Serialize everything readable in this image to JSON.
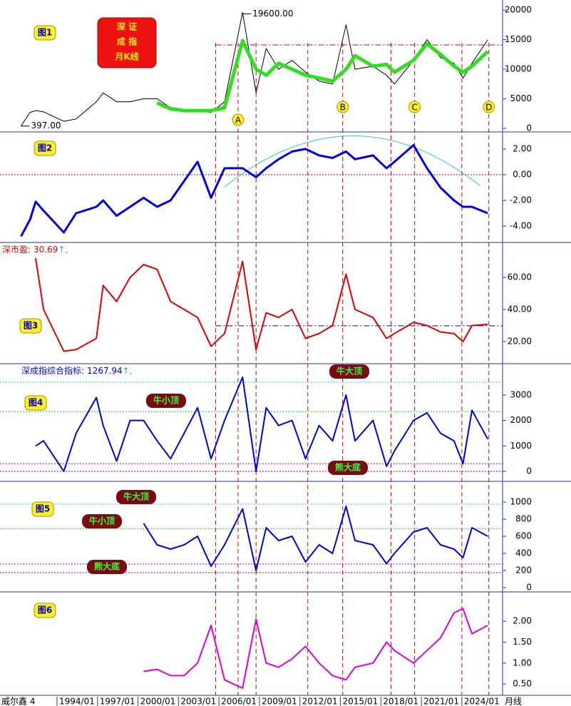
{
  "chart_data": [
    {
      "type": "line",
      "panel_label": "图1",
      "title_lines": [
        "深 证",
        "成 指",
        "月K线"
      ],
      "ylim": [
        -600,
        21700
      ],
      "yticks": [
        0,
        5000,
        10000,
        15000,
        20000
      ],
      "x": [
        "1991/05",
        "1992/01",
        "1992/06",
        "1993/01",
        "1994/07",
        "1995/06",
        "1996/12",
        "1997/06",
        "1998/06",
        "1999/06",
        "2000/06",
        "2001/06",
        "2002/06",
        "2003/06",
        "2004/06",
        "2005/06",
        "2006/06",
        "2007/10",
        "2008/10",
        "2009/07",
        "2010/06",
        "2011/06",
        "2012/06",
        "2013/06",
        "2014/06",
        "2015/06",
        "2016/02",
        "2017/06",
        "2018/06",
        "2019/01",
        "2020/06",
        "2021/06",
        "2022/06",
        "2023/06",
        "2024/02",
        "2024/10",
        "2025/12"
      ],
      "series": [
        {
          "color": "#000000",
          "width": 1,
          "values": [
            397,
            2700,
            3000,
            2800,
            1200,
            1600,
            4500,
            6000,
            4500,
            4500,
            5000,
            5000,
            3500,
            3000,
            3000,
            2700,
            4500,
            19600,
            6000,
            13500,
            10000,
            11500,
            9500,
            8000,
            7500,
            17500,
            10000,
            10500,
            9000,
            7500,
            11500,
            15000,
            12000,
            11000,
            8500,
            11000,
            15000
          ]
        },
        {
          "color": "#33dd22",
          "width": 5,
          "values": [
            null,
            null,
            null,
            null,
            null,
            null,
            null,
            null,
            null,
            null,
            null,
            4300,
            3300,
            3000,
            3000,
            3000,
            3500,
            14800,
            10000,
            9000,
            11000,
            10000,
            9000,
            8500,
            8000,
            10000,
            12300,
            10500,
            10800,
            9500,
            11500,
            14300,
            12500,
            10500,
            9500,
            10500,
            13000
          ]
        }
      ],
      "hlines": [
        {
          "value": 14100,
          "color": "#cc0000",
          "style": "dashdot",
          "from": "2005/10"
        }
      ],
      "annotations": [
        {
          "value": 19600,
          "label": "19600.00",
          "x": "2007/10"
        },
        {
          "value": 397,
          "label": "397.00",
          "x": "1991/05"
        }
      ],
      "point_labels": [
        {
          "label": "A",
          "x": "2007/06"
        },
        {
          "label": "B",
          "x": "2015/03"
        },
        {
          "label": "C",
          "x": "2020/07"
        },
        {
          "label": "D",
          "x": "2026/01"
        }
      ]
    },
    {
      "type": "line",
      "panel_label": "图2",
      "ylim": [
        -5.28,
        3.33
      ],
      "yticks": [
        {
          "value": -4,
          "label": "-4.00"
        },
        {
          "value": -2,
          "label": "-2.00"
        },
        {
          "value": 0,
          "label": "0.00"
        },
        {
          "value": 2,
          "label": "2.00"
        }
      ],
      "x": [
        "1991/05",
        "1992/01",
        "1992/06",
        "1993/01",
        "1994/07",
        "1995/06",
        "1996/12",
        "1997/06",
        "1998/06",
        "1999/06",
        "2000/06",
        "2001/06",
        "2002/06",
        "2003/06",
        "2004/06",
        "2005/06",
        "2006/06",
        "2007/10",
        "2008/10",
        "2009/07",
        "2010/06",
        "2011/06",
        "2012/06",
        "2013/06",
        "2014/06",
        "2015/06",
        "2016/02",
        "2017/06",
        "2018/06",
        "2019/01",
        "2020/06",
        "2021/06",
        "2022/06",
        "2023/06",
        "2024/02",
        "2024/10",
        "2025/12"
      ],
      "series": [
        {
          "color": "#0000dd",
          "width": 3,
          "values": [
            -4.8,
            -3.5,
            -2.1,
            -2.8,
            -4.5,
            -3,
            -2.5,
            -2,
            -3.2,
            -2.5,
            -1.8,
            -2.5,
            -2,
            -0.5,
            1,
            -1.8,
            0.5,
            0.5,
            -0.2,
            0.5,
            1.2,
            1.8,
            2,
            1.5,
            1.3,
            1.8,
            1.2,
            1.5,
            0.5,
            1,
            2.3,
            0.5,
            -1,
            -2,
            -2.5,
            -2.5,
            -3
          ]
        }
      ],
      "hlines": [
        {
          "value": 0,
          "color": "#cc0000",
          "style": "dot"
        }
      ]
    },
    {
      "type": "line",
      "panel_label": "图3",
      "ylim": [
        6.2,
        81.8
      ],
      "yticks": [
        {
          "value": 20,
          "label": "20.00"
        },
        {
          "value": 40,
          "label": "40.00"
        },
        {
          "value": 60,
          "label": "60.00"
        }
      ],
      "x": [
        "1991/05",
        "1992/01",
        "1992/06",
        "1993/01",
        "1994/07",
        "1995/06",
        "1996/12",
        "1997/06",
        "1998/06",
        "1999/06",
        "2000/06",
        "2001/06",
        "2002/06",
        "2003/06",
        "2004/06",
        "2005/06",
        "2006/06",
        "2007/10",
        "2008/10",
        "2009/07",
        "2010/06",
        "2011/06",
        "2012/06",
        "2013/06",
        "2014/06",
        "2015/06",
        "2016/02",
        "2017/06",
        "2018/06",
        "2019/01",
        "2020/06",
        "2021/06",
        "2022/06",
        "2023/06",
        "2024/02",
        "2024/10",
        "2025/12"
      ],
      "series": [
        {
          "name": "深市盈:",
          "suffix": "↑,",
          "color": "#dd0000",
          "width": 2,
          "values": [
            null,
            null,
            72,
            40,
            14,
            15,
            22,
            55,
            45,
            60,
            68,
            65,
            45,
            40,
            35,
            17,
            25,
            70,
            15,
            38,
            35,
            40,
            22,
            25,
            30,
            62,
            40,
            35,
            22,
            25,
            32,
            30,
            26,
            25,
            20,
            30,
            30.69
          ]
        }
      ],
      "hlines": [
        {
          "value": 29.8,
          "color": "#0000cc",
          "style": "dashdot",
          "from": "2005/10"
        }
      ]
    },
    {
      "type": "line",
      "panel_label": "图4",
      "ylim": [
        -392,
        4230
      ],
      "yticks": [
        0,
        1000,
        2000,
        3000
      ],
      "x": [
        "1991/05",
        "1992/01",
        "1992/06",
        "1993/01",
        "1994/07",
        "1995/06",
        "1996/12",
        "1997/06",
        "1998/06",
        "1999/06",
        "2000/06",
        "2001/06",
        "2002/06",
        "2003/06",
        "2004/06",
        "2005/06",
        "2006/06",
        "2007/10",
        "2008/10",
        "2009/07",
        "2010/06",
        "2011/06",
        "2012/06",
        "2013/06",
        "2014/06",
        "2015/06",
        "2016/02",
        "2017/06",
        "2018/06",
        "2019/01",
        "2020/06",
        "2021/06",
        "2022/06",
        "2023/06",
        "2024/02",
        "2024/10",
        "2025/12"
      ],
      "series": [
        {
          "name": "深成指综合指标:",
          "suffix": "↑,",
          "color": "#0000dd",
          "width": 2,
          "values": [
            null,
            null,
            1000,
            1200,
            0,
            1500,
            2900,
            1800,
            400,
            2000,
            2000,
            1200,
            500,
            1500,
            2500,
            500,
            2000,
            3700,
            0,
            2500,
            1800,
            2000,
            500,
            1800,
            1200,
            3000,
            1200,
            2000,
            200,
            800,
            2000,
            2300,
            1500,
            1200,
            300,
            2400,
            1267.94
          ]
        }
      ],
      "hlines": [
        {
          "value": 3500,
          "color": "#22cccc",
          "style": "dot"
        },
        {
          "value": 2350,
          "color": "#22cc22",
          "style": "dot"
        },
        {
          "value": 300,
          "color": "#cc00cc",
          "style": "dot"
        },
        {
          "value": 0,
          "color": "#cc0000",
          "style": "dot"
        }
      ],
      "zone_labels": [
        "牛大顶",
        "牛小顶",
        "熊大底"
      ]
    },
    {
      "type": "line",
      "panel_label": "图5",
      "ylim": [
        -50,
        1242
      ],
      "yticks": [
        0,
        200,
        400,
        600,
        800,
        1000
      ],
      "x": [
        "2000/06",
        "2001/06",
        "2002/06",
        "2003/06",
        "2004/06",
        "2005/06",
        "2006/06",
        "2007/10",
        "2008/10",
        "2009/07",
        "2010/06",
        "2011/06",
        "2012/06",
        "2013/06",
        "2014/06",
        "2015/06",
        "2016/02",
        "2017/06",
        "2018/06",
        "2019/01",
        "2020/06",
        "2021/06",
        "2022/06",
        "2023/06",
        "2024/02",
        "2024/10",
        "2025/12"
      ],
      "series": [
        {
          "color": "#0000dd",
          "width": 2,
          "values": [
            750,
            500,
            450,
            500,
            600,
            250,
            500,
            920,
            200,
            700,
            550,
            600,
            300,
            500,
            400,
            950,
            550,
            500,
            280,
            400,
            650,
            700,
            500,
            450,
            350,
            700,
            600
          ]
        }
      ],
      "hlines": [
        {
          "value": 975,
          "color": "#22cccc",
          "style": "dot"
        },
        {
          "value": 690,
          "color": "#22cc22",
          "style": "dot"
        },
        {
          "value": 275,
          "color": "#cc00cc",
          "style": "dot"
        },
        {
          "value": 175,
          "color": "#cc0000",
          "style": "dot"
        }
      ],
      "zone_labels": [
        "牛大顶",
        "牛小顶",
        "熊大底"
      ]
    },
    {
      "type": "line",
      "panel_label": "图6",
      "ylim": [
        0.23,
        2.7
      ],
      "yticks": [
        {
          "value": 0.5,
          "label": "0.50"
        },
        {
          "value": 1,
          "label": "1.00"
        },
        {
          "value": 1.5,
          "label": "1.50"
        },
        {
          "value": 2,
          "label": "2.00"
        }
      ],
      "x": [
        "2000/06",
        "2001/06",
        "2002/06",
        "2003/06",
        "2004/06",
        "2005/06",
        "2006/06",
        "2007/10",
        "2008/10",
        "2009/07",
        "2010/06",
        "2011/06",
        "2012/06",
        "2013/06",
        "2014/06",
        "2015/06",
        "2016/02",
        "2017/06",
        "2018/06",
        "2019/01",
        "2020/06",
        "2021/06",
        "2022/06",
        "2023/06",
        "2024/02",
        "2024/10",
        "2025/12"
      ],
      "series": [
        {
          "color": "#dd00dd",
          "width": 2,
          "values": [
            0.8,
            0.85,
            0.7,
            0.7,
            1.0,
            1.9,
            0.6,
            0.4,
            2.05,
            1.0,
            0.9,
            1.1,
            1.4,
            1.0,
            0.7,
            0.6,
            0.9,
            1.0,
            1.5,
            1.3,
            1.0,
            1.3,
            1.6,
            2.2,
            2.3,
            1.7,
            1.9
          ]
        }
      ],
      "xticks": [
        "1994/01",
        "1997/01",
        "2000/01",
        "2003/01",
        "2006/01",
        "2009/01",
        "2012/01",
        "2015/01",
        "2018/01",
        "2021/01",
        "2024/01"
      ]
    }
  ],
  "reference_dates": [
    "2005/10",
    "2007/06",
    "2008/10",
    "2012/08",
    "2015/03",
    "2018/10",
    "2020/07",
    "2024/01",
    "2026/01"
  ],
  "footer": {
    "left": "威尔鑫 4",
    "right": "月线"
  }
}
